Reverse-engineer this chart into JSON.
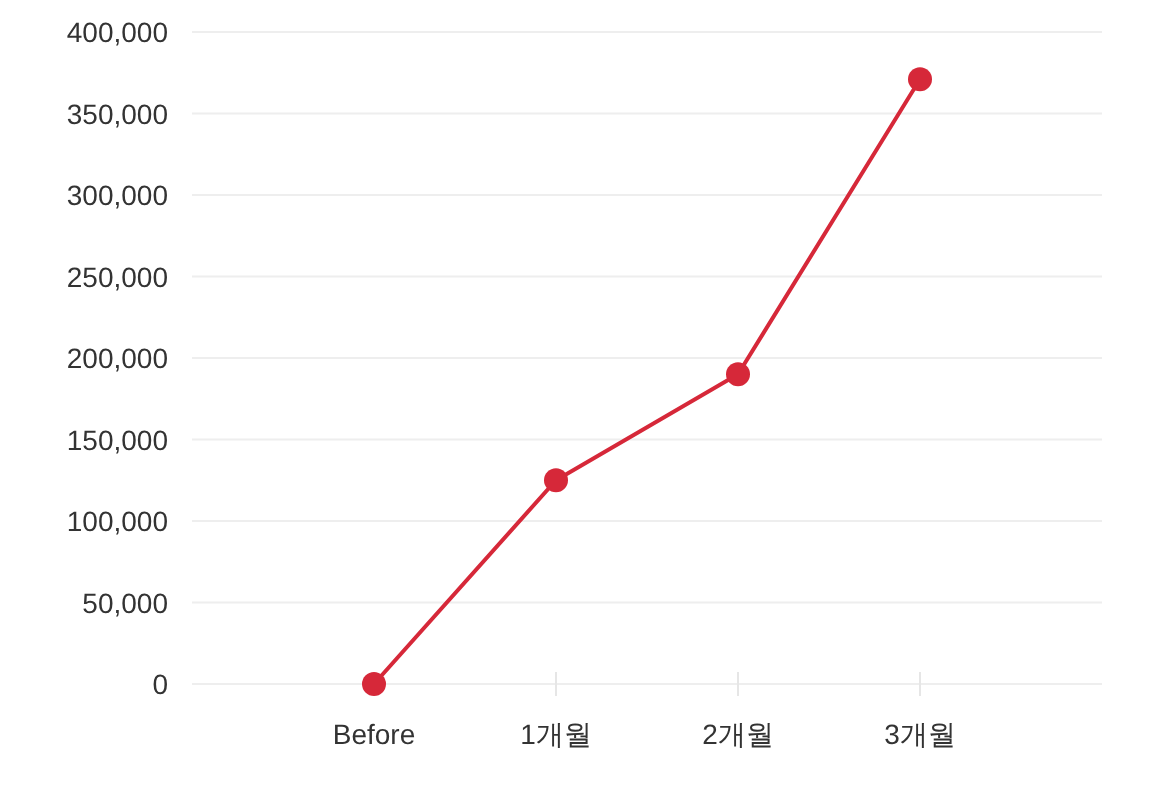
{
  "chart_data": {
    "type": "line",
    "categories": [
      "Before",
      "1개월",
      "2개월",
      "3개월"
    ],
    "series": [
      {
        "color": "#d62839",
        "values": [
          0,
          125000,
          190000,
          371000
        ]
      }
    ],
    "ylim": [
      0,
      400000
    ],
    "yticks": [
      {
        "value": 0,
        "label": "0"
      },
      {
        "value": 50000,
        "label": "50,000"
      },
      {
        "value": 100000,
        "label": "100,000"
      },
      {
        "value": 150000,
        "label": "150,000"
      },
      {
        "value": 200000,
        "label": "200,000"
      },
      {
        "value": 250000,
        "label": "250,000"
      },
      {
        "value": 300000,
        "label": "300,000"
      },
      {
        "value": 350000,
        "label": "350,000"
      },
      {
        "value": 400000,
        "label": "400,000"
      }
    ],
    "grid": "y",
    "marker": "circle"
  }
}
